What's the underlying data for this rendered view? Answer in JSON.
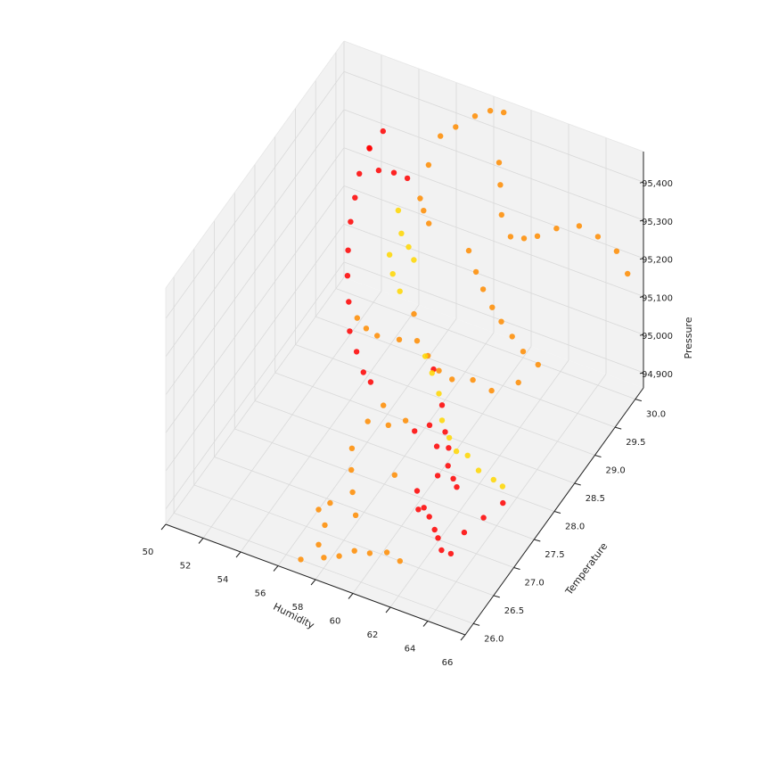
{
  "chart_data": {
    "type": "scatter",
    "projection": "3d",
    "title": "",
    "axes": {
      "x": {
        "label": "Humidity",
        "range": [
          50,
          66
        ],
        "ticks": [
          "50",
          "52",
          "54",
          "56",
          "58",
          "60",
          "62",
          "64",
          "66"
        ]
      },
      "y": {
        "label": "Temperature",
        "range": [
          25.8,
          30.2
        ],
        "ticks": [
          "26.0",
          "26.5",
          "27.0",
          "27.5",
          "28.0",
          "28.5",
          "29.0",
          "29.5",
          "30.0"
        ]
      },
      "z": {
        "label": "Pressure",
        "range": [
          94860,
          95480
        ],
        "ticks": [
          "94,900",
          "95,000",
          "95,100",
          "95,200",
          "95,300",
          "95,400"
        ]
      }
    },
    "grid": true,
    "legend": "none",
    "colors": {
      "red": "#ff0000",
      "orange": "#ff8c00",
      "gold": "#ffd700",
      "pane": "#f2f2f2",
      "grid": "#d9d9d9"
    },
    "series": [
      {
        "color": "red",
        "points": [
          [
            52.3,
            29.3,
            95180
          ],
          [
            52.6,
            29.1,
            95140
          ],
          [
            53.0,
            28.9,
            95110
          ],
          [
            53.5,
            28.7,
            95080
          ],
          [
            54.2,
            28.4,
            95060
          ],
          [
            55.0,
            28.2,
            95050
          ],
          [
            55.8,
            28.0,
            95040
          ],
          [
            56.4,
            27.9,
            95040
          ],
          [
            52.1,
            29.5,
            95210
          ],
          [
            51.9,
            29.7,
            95240
          ],
          [
            52.5,
            29.9,
            95230
          ],
          [
            53.1,
            30.0,
            95220
          ],
          [
            53.6,
            30.1,
            95200
          ],
          [
            52.0,
            29.9,
            95280
          ],
          [
            52.3,
            30.1,
            95300
          ],
          [
            51.8,
            30.0,
            95260
          ],
          [
            60.6,
            27.8,
            95000
          ],
          [
            61.0,
            27.7,
            94980
          ],
          [
            61.4,
            27.5,
            94970
          ],
          [
            61.9,
            27.4,
            94960
          ],
          [
            62.3,
            27.3,
            94960
          ],
          [
            60.2,
            27.6,
            95040
          ],
          [
            60.8,
            27.5,
            95010
          ],
          [
            61.5,
            27.2,
            94990
          ],
          [
            61.2,
            27.0,
            94930
          ],
          [
            61.7,
            26.9,
            94930
          ],
          [
            62.2,
            26.8,
            94920
          ],
          [
            62.6,
            26.7,
            94920
          ],
          [
            63.0,
            26.6,
            94910
          ],
          [
            63.5,
            26.6,
            94910
          ],
          [
            64.0,
            26.7,
            94960
          ],
          [
            64.6,
            26.9,
            94980
          ],
          [
            65.2,
            27.1,
            95000
          ],
          [
            60.4,
            27.2,
            94930
          ],
          [
            60.9,
            27.0,
            94920
          ],
          [
            59.4,
            27.6,
            95010
          ],
          [
            58.9,
            28.3,
            95060
          ],
          [
            60.0,
            28.0,
            95030
          ]
        ]
      },
      {
        "color": "orange",
        "points": [
          [
            55.8,
            29.9,
            95380
          ],
          [
            56.4,
            30.0,
            95400
          ],
          [
            57.0,
            30.2,
            95410
          ],
          [
            57.6,
            30.3,
            95420
          ],
          [
            58.1,
            30.4,
            95410
          ],
          [
            55.6,
            29.7,
            95330
          ],
          [
            55.8,
            29.4,
            95290
          ],
          [
            56.2,
            29.3,
            95280
          ],
          [
            56.7,
            29.2,
            95270
          ],
          [
            58.5,
            30.1,
            95330
          ],
          [
            59.0,
            29.9,
            95310
          ],
          [
            59.5,
            29.7,
            95270
          ],
          [
            60.2,
            29.6,
            95240
          ],
          [
            60.7,
            29.7,
            95230
          ],
          [
            61.2,
            29.8,
            95230
          ],
          [
            62.0,
            29.9,
            95250
          ],
          [
            63.0,
            30.0,
            95260
          ],
          [
            64.0,
            30.0,
            95250
          ],
          [
            65.0,
            30.0,
            95230
          ],
          [
            65.8,
            29.9,
            95200
          ],
          [
            58.4,
            29.4,
            95200
          ],
          [
            59.0,
            29.3,
            95170
          ],
          [
            59.6,
            29.2,
            95150
          ],
          [
            60.3,
            29.1,
            95130
          ],
          [
            61.0,
            29.0,
            95120
          ],
          [
            61.8,
            28.9,
            95110
          ],
          [
            62.6,
            28.8,
            95100
          ],
          [
            63.4,
            28.8,
            95080
          ],
          [
            57.2,
            28.6,
            95130
          ],
          [
            57.8,
            28.4,
            95100
          ],
          [
            58.6,
            28.3,
            95090
          ],
          [
            59.4,
            28.2,
            95080
          ],
          [
            60.1,
            28.2,
            95070
          ],
          [
            61.0,
            28.3,
            95070
          ],
          [
            62.0,
            28.3,
            95060
          ],
          [
            63.0,
            28.5,
            95070
          ],
          [
            57.3,
            27.8,
            95010
          ],
          [
            56.9,
            27.6,
            94990
          ],
          [
            56.7,
            27.3,
            94960
          ],
          [
            57.1,
            27.1,
            94940
          ],
          [
            57.6,
            26.9,
            94920
          ],
          [
            58.2,
            26.7,
            94900
          ],
          [
            58.0,
            27.6,
            95000
          ],
          [
            58.7,
            27.7,
            95010
          ],
          [
            59.2,
            27.2,
            94950
          ],
          [
            57.2,
            26.4,
            94900
          ],
          [
            57.3,
            26.2,
            94880
          ],
          [
            57.8,
            26.1,
            94870
          ],
          [
            58.4,
            26.2,
            94870
          ],
          [
            59.0,
            26.3,
            94880
          ],
          [
            59.6,
            26.4,
            94870
          ],
          [
            60.3,
            26.5,
            94870
          ],
          [
            61.0,
            26.5,
            94860
          ],
          [
            56.0,
            26.8,
            94860
          ],
          [
            56.4,
            26.9,
            94870
          ],
          [
            57.0,
            25.9,
            94880
          ],
          [
            53.3,
            29.0,
            94990
          ],
          [
            54.0,
            28.9,
            94990
          ],
          [
            54.8,
            28.8,
            95000
          ],
          [
            56.2,
            28.7,
            95030
          ]
        ]
      },
      {
        "color": "gold",
        "points": [
          [
            54.2,
            29.6,
            95200
          ],
          [
            54.8,
            29.4,
            95180
          ],
          [
            55.4,
            29.3,
            95170
          ],
          [
            55.9,
            29.2,
            95160
          ],
          [
            54.6,
            29.2,
            95150
          ],
          [
            55.2,
            29.0,
            95140
          ],
          [
            55.8,
            28.9,
            95120
          ],
          [
            57.8,
            28.6,
            95030
          ],
          [
            58.6,
            28.4,
            95030
          ],
          [
            59.4,
            28.2,
            95020
          ],
          [
            60.0,
            28.0,
            94990
          ],
          [
            60.6,
            27.9,
            94970
          ],
          [
            61.2,
            27.8,
            94960
          ],
          [
            61.8,
            27.8,
            94960
          ],
          [
            62.6,
            27.7,
            94950
          ],
          [
            63.4,
            27.7,
            94940
          ],
          [
            64.1,
            27.6,
            94950
          ]
        ]
      }
    ]
  }
}
